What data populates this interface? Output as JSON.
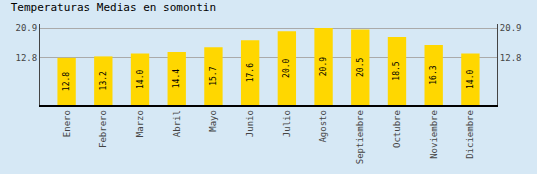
{
  "chart_data": {
    "type": "bar",
    "title": "Temperaturas Medias en somontin",
    "categories": [
      "Enero",
      "Febrero",
      "Marzo",
      "Abril",
      "Mayo",
      "Junio",
      "Julio",
      "Agosto",
      "Septiembre",
      "Octubre",
      "Noviembre",
      "Diciembre"
    ],
    "values": [
      12.8,
      13.2,
      14.0,
      14.4,
      15.7,
      17.6,
      20.0,
      20.9,
      20.5,
      18.5,
      16.3,
      14.0
    ],
    "value_labels": [
      "12.8",
      "13.2",
      "14.0",
      "14.4",
      "15.7",
      "17.6",
      "20.0",
      "20.9",
      "20.5",
      "18.5",
      "16.3",
      "14.0"
    ],
    "data_labels": true,
    "color": "#FFD700",
    "ylim": [
      0,
      22.0
    ],
    "yticks": [
      12.8,
      20.9
    ],
    "y2lim": [
      0,
      22.0
    ],
    "y2ticks": [
      12.8,
      20.9
    ],
    "grid": true
  }
}
